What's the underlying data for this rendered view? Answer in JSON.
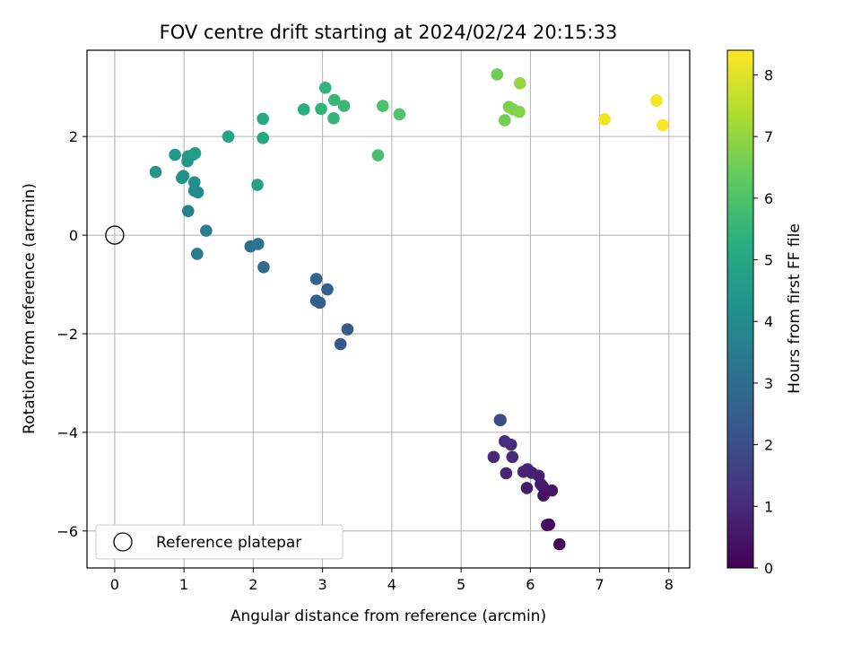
{
  "chart_data": {
    "type": "scatter",
    "title": "FOV centre drift starting at 2024/02/24 20:15:33",
    "xlabel": "Angular distance from reference (arcmin)",
    "ylabel": "Rotation from reference (arcmin)",
    "xlim": [
      -0.4,
      8.3
    ],
    "ylim": [
      -6.75,
      3.75
    ],
    "xticks": [
      0,
      1,
      2,
      3,
      4,
      5,
      6,
      7,
      8
    ],
    "yticks": [
      -6,
      -4,
      -2,
      0,
      2
    ],
    "grid": true,
    "legend": {
      "position": "lower-left",
      "entries": [
        "Reference platepar"
      ]
    },
    "reference_point": {
      "x": 0,
      "y": 0
    },
    "colorbar": {
      "label": "Hours from first FF file",
      "range": [
        0,
        8.4
      ],
      "ticks": [
        0,
        1,
        2,
        3,
        4,
        5,
        6,
        7,
        8
      ],
      "colormap": "viridis"
    },
    "points": [
      {
        "x": 6.42,
        "y": -6.27,
        "h": 0.1
      },
      {
        "x": 6.27,
        "y": -5.87,
        "h": 0.2
      },
      {
        "x": 6.24,
        "y": -5.88,
        "h": 0.3
      },
      {
        "x": 6.19,
        "y": -5.28,
        "h": 0.4
      },
      {
        "x": 6.31,
        "y": -5.18,
        "h": 0.45
      },
      {
        "x": 6.18,
        "y": -5.1,
        "h": 0.5
      },
      {
        "x": 6.15,
        "y": -5.05,
        "h": 0.6
      },
      {
        "x": 5.95,
        "y": -5.13,
        "h": 0.65
      },
      {
        "x": 6.12,
        "y": -4.88,
        "h": 0.7
      },
      {
        "x": 6.02,
        "y": -4.82,
        "h": 0.75
      },
      {
        "x": 5.96,
        "y": -4.75,
        "h": 0.8
      },
      {
        "x": 5.9,
        "y": -4.8,
        "h": 0.85
      },
      {
        "x": 5.65,
        "y": -4.83,
        "h": 0.9
      },
      {
        "x": 5.47,
        "y": -4.5,
        "h": 0.95
      },
      {
        "x": 5.74,
        "y": -4.5,
        "h": 1.0
      },
      {
        "x": 5.72,
        "y": -4.25,
        "h": 1.05
      },
      {
        "x": 5.63,
        "y": -4.18,
        "h": 1.1
      },
      {
        "x": 5.56,
        "y": -3.75,
        "h": 1.9
      },
      {
        "x": 5.57,
        "y": -3.75,
        "h": 2.0
      },
      {
        "x": 3.26,
        "y": -2.21,
        "h": 2.3
      },
      {
        "x": 3.36,
        "y": -1.91,
        "h": 2.35
      },
      {
        "x": 2.96,
        "y": -1.37,
        "h": 2.5
      },
      {
        "x": 2.91,
        "y": -1.33,
        "h": 2.55
      },
      {
        "x": 3.07,
        "y": -1.1,
        "h": 2.6
      },
      {
        "x": 2.91,
        "y": -0.89,
        "h": 2.65
      },
      {
        "x": 2.15,
        "y": -0.65,
        "h": 3.0
      },
      {
        "x": 1.96,
        "y": -0.23,
        "h": 3.1
      },
      {
        "x": 2.07,
        "y": -0.18,
        "h": 3.2
      },
      {
        "x": 1.19,
        "y": -0.38,
        "h": 3.5
      },
      {
        "x": 1.32,
        "y": 0.09,
        "h": 3.6
      },
      {
        "x": 1.06,
        "y": 0.49,
        "h": 3.7
      },
      {
        "x": 1.2,
        "y": 0.87,
        "h": 4.0
      },
      {
        "x": 1.15,
        "y": 0.9,
        "h": 4.05
      },
      {
        "x": 1.15,
        "y": 1.07,
        "h": 4.1
      },
      {
        "x": 0.97,
        "y": 1.16,
        "h": 4.2
      },
      {
        "x": 0.99,
        "y": 1.2,
        "h": 4.25
      },
      {
        "x": 0.59,
        "y": 1.28,
        "h": 4.3
      },
      {
        "x": 1.05,
        "y": 1.5,
        "h": 4.4
      },
      {
        "x": 1.06,
        "y": 1.6,
        "h": 4.45
      },
      {
        "x": 0.87,
        "y": 1.63,
        "h": 4.5
      },
      {
        "x": 1.13,
        "y": 1.63,
        "h": 4.55
      },
      {
        "x": 1.16,
        "y": 1.66,
        "h": 4.6
      },
      {
        "x": 2.06,
        "y": 1.02,
        "h": 4.8
      },
      {
        "x": 1.64,
        "y": 2.0,
        "h": 4.9
      },
      {
        "x": 2.14,
        "y": 1.97,
        "h": 5.0
      },
      {
        "x": 2.14,
        "y": 2.36,
        "h": 5.05
      },
      {
        "x": 2.73,
        "y": 2.55,
        "h": 5.3
      },
      {
        "x": 2.98,
        "y": 2.56,
        "h": 5.4
      },
      {
        "x": 3.04,
        "y": 2.99,
        "h": 5.45
      },
      {
        "x": 3.16,
        "y": 2.37,
        "h": 5.5
      },
      {
        "x": 3.17,
        "y": 2.74,
        "h": 5.55
      },
      {
        "x": 3.31,
        "y": 2.62,
        "h": 5.6
      },
      {
        "x": 3.8,
        "y": 1.62,
        "h": 5.9
      },
      {
        "x": 3.87,
        "y": 2.62,
        "h": 6.0
      },
      {
        "x": 4.11,
        "y": 2.45,
        "h": 6.1
      },
      {
        "x": 5.52,
        "y": 3.26,
        "h": 6.5
      },
      {
        "x": 5.63,
        "y": 2.33,
        "h": 6.6
      },
      {
        "x": 5.69,
        "y": 2.6,
        "h": 6.7
      },
      {
        "x": 5.75,
        "y": 2.55,
        "h": 6.75
      },
      {
        "x": 5.84,
        "y": 2.5,
        "h": 6.8
      },
      {
        "x": 5.85,
        "y": 3.08,
        "h": 7.0
      },
      {
        "x": 7.07,
        "y": 2.35,
        "h": 8.2
      },
      {
        "x": 7.82,
        "y": 2.73,
        "h": 8.3
      },
      {
        "x": 7.91,
        "y": 2.23,
        "h": 8.35
      }
    ]
  }
}
